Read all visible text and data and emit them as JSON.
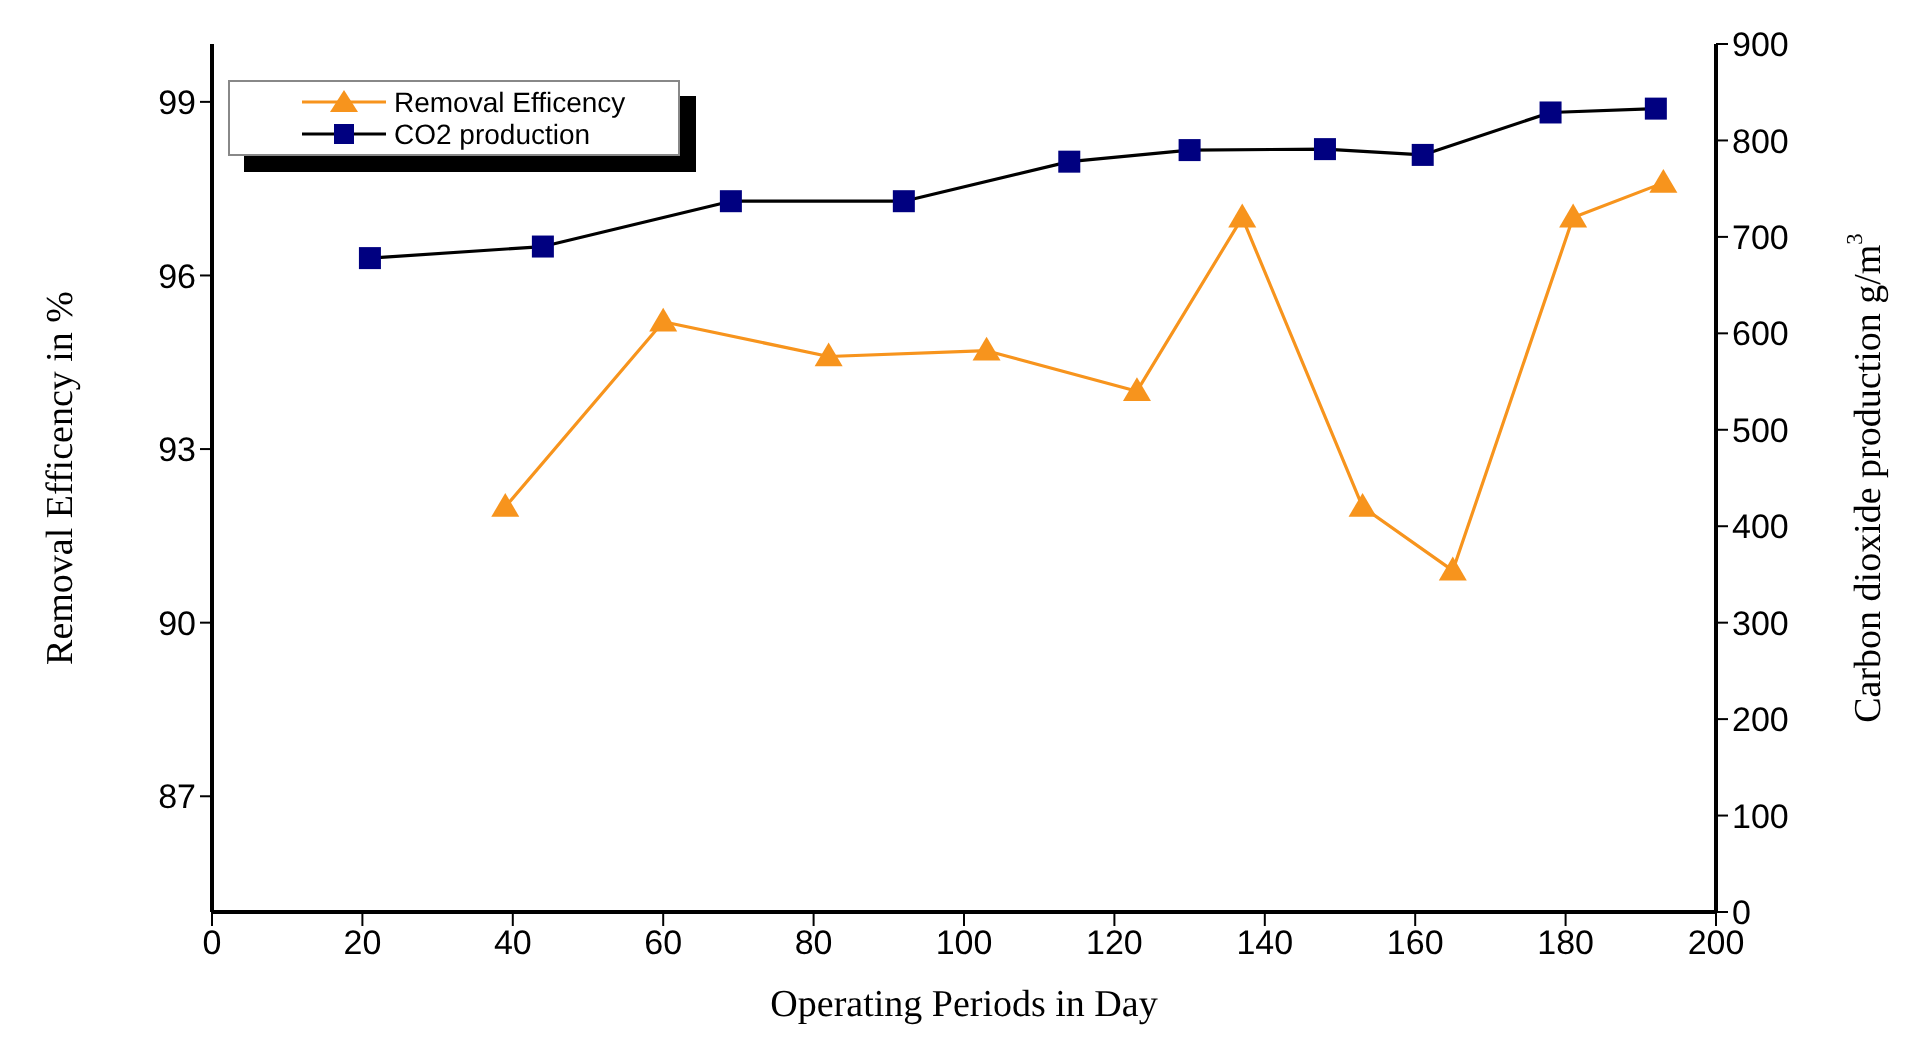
{
  "chart_data": {
    "type": "line",
    "xlabel": "Operating Periods in Day",
    "ylabel": "Removal Efficency in %",
    "y2label": "Carbon dioxide production g/m$^{3}$",
    "xlim": [
      0,
      200
    ],
    "xticks": [
      0,
      20,
      40,
      60,
      80,
      100,
      120,
      140,
      160,
      180,
      200
    ],
    "ylim": [
      85,
      100
    ],
    "yticks": [
      87,
      90,
      93,
      96,
      99
    ],
    "y2lim": [
      0,
      900
    ],
    "y2ticks": [
      0,
      100,
      200,
      300,
      400,
      500,
      600,
      700,
      800,
      900
    ],
    "legend": "top left",
    "line_style": "solid",
    "series": [
      {
        "name": "Removal Efficency",
        "color": "#f7941d",
        "marker": "triangle",
        "x": [
          39,
          60,
          82,
          103,
          123,
          137,
          153,
          165,
          181,
          193
        ],
        "values": [
          92.0,
          95.2,
          94.6,
          94.7,
          94.0,
          97.0,
          92.0,
          90.9,
          97.0,
          97.6
        ]
      },
      {
        "name": "CO2 production",
        "color": "#000080",
        "marker": "square",
        "axis": "y2",
        "x": [
          21,
          44,
          69,
          92,
          114,
          130,
          148,
          161,
          178,
          192
        ],
        "values": [
          678,
          690,
          737,
          737,
          778,
          790,
          791,
          785,
          829,
          833
        ]
      }
    ]
  }
}
